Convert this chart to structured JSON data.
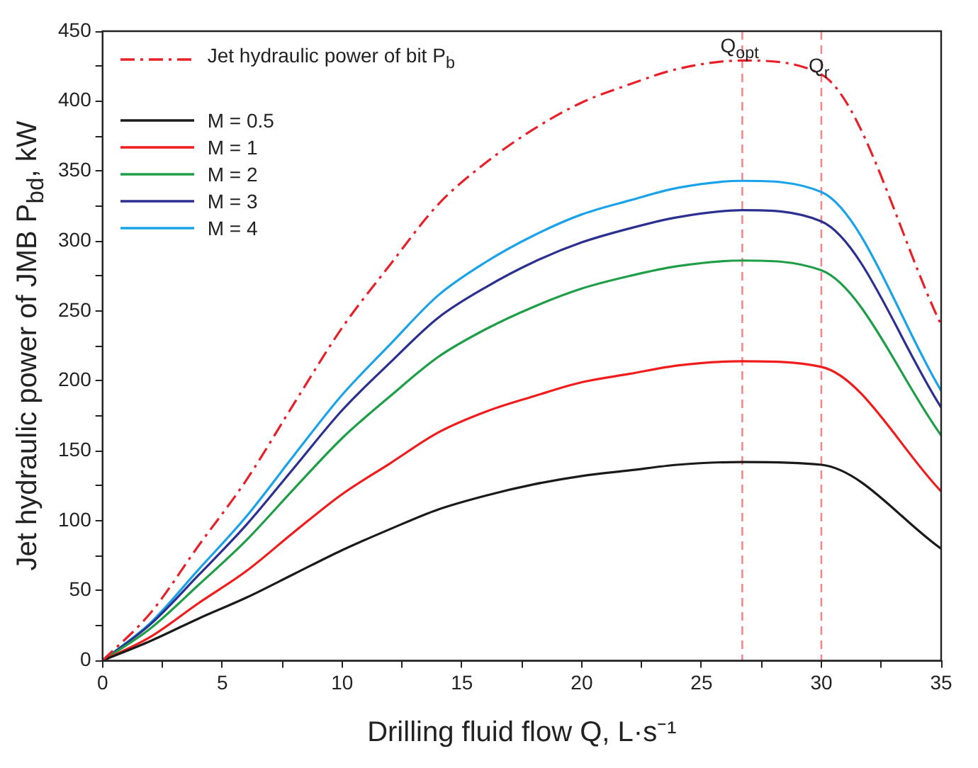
{
  "chart_data": {
    "type": "line",
    "xlabel": "Drilling fluid flow Q, L·s⁻¹",
    "ylabel": "Jet hydraulic power of JMB P$_{bd}$, kW",
    "x": [
      0,
      2,
      4,
      6,
      8,
      10,
      12,
      14,
      16,
      18,
      20,
      22,
      24,
      26.7,
      30,
      35
    ],
    "series": [
      {
        "name": "Jet hydraulic power of bit P$_{b}$",
        "color": "#e8202a",
        "line_style": "dashed",
        "values": [
          0,
          34,
          82,
          129,
          184,
          238,
          283,
          326,
          356,
          380,
          399,
          412,
          423,
          429,
          419,
          240
        ]
      },
      {
        "name": "M = 0.5",
        "color": "#1a1a1a",
        "values": [
          0,
          14,
          30,
          45,
          62,
          79,
          94,
          108,
          118,
          126,
          132,
          136,
          140,
          142,
          140,
          80
        ]
      },
      {
        "name": "M = 1",
        "color": "#f01c1c",
        "values": [
          0,
          17,
          41,
          64,
          92,
          119,
          141,
          163,
          178,
          189,
          199,
          205,
          211,
          214,
          210,
          121
        ]
      },
      {
        "name": "M = 2",
        "color": "#1f9e48",
        "values": [
          0,
          23,
          54,
          86,
          123,
          159,
          189,
          217,
          237,
          253,
          266,
          275,
          282,
          286,
          279,
          161
        ]
      },
      {
        "name": "M = 3",
        "color": "#2b2f8f",
        "values": [
          0,
          26,
          61,
          97,
          138,
          179,
          213,
          245,
          267,
          285,
          299,
          309,
          317,
          322,
          314,
          181
        ]
      },
      {
        "name": "M = 4",
        "color": "#1aa3e8",
        "values": [
          0,
          27,
          65,
          103,
          147,
          190,
          226,
          261,
          285,
          304,
          319,
          329,
          338,
          343,
          335,
          193
        ]
      }
    ],
    "xlim": [
      0,
      35
    ],
    "xticks": [
      0,
      {
        "value": 2.5,
        "label": null
      },
      5,
      {
        "value": 7.5,
        "label": null
      },
      10,
      {
        "value": 12.5,
        "label": null
      },
      15,
      {
        "value": 17.5,
        "label": null
      },
      20,
      {
        "value": 22.5,
        "label": null
      },
      25,
      {
        "value": 27.5,
        "label": null
      },
      30,
      {
        "value": 32.5,
        "label": null
      },
      35
    ],
    "ylim": [
      0,
      450
    ],
    "yticks": [
      0,
      {
        "value": 25,
        "label": null
      },
      50,
      {
        "value": 75,
        "label": null
      },
      100,
      {
        "value": 125,
        "label": null
      },
      150,
      {
        "value": 175,
        "label": null
      },
      200,
      {
        "value": 225,
        "label": null
      },
      250,
      {
        "value": 275,
        "label": null
      },
      300,
      {
        "value": 325,
        "label": null
      },
      350,
      {
        "value": 375,
        "label": null
      },
      400,
      {
        "value": 425,
        "label": null
      },
      450
    ],
    "ref_lines": [
      {
        "axis": "x",
        "value": 26.7,
        "label": "Q$_{opt}$",
        "color": "#f08a8a",
        "line_style": "dashed"
      },
      {
        "axis": "x",
        "value": 30,
        "label": "Q$_{r}$",
        "color": "#f08a8a",
        "line_style": "dashed"
      }
    ],
    "grid": false,
    "legend": "top left",
    "marker": "none"
  }
}
